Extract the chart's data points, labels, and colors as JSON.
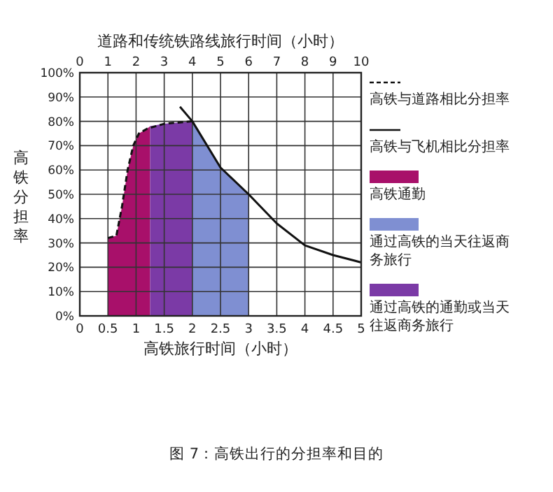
{
  "chart_data": {
    "type": "area",
    "x2label": "道路和传统铁路线旅行时间（小时）",
    "xlabel": "高铁旅行时间（小时）",
    "ylabel": "高铁分担率",
    "xlim": [
      0,
      5
    ],
    "xticks": [
      0,
      0.5,
      1,
      1.5,
      2,
      2.5,
      3,
      3.5,
      4,
      4.5,
      5
    ],
    "x2lim": [
      0,
      10
    ],
    "x2ticks": [
      0,
      1,
      2,
      3,
      4,
      5,
      6,
      7,
      8,
      9,
      10
    ],
    "ylim": [
      0,
      100
    ],
    "yticks": [
      {
        "value": 0,
        "label": "0%"
      },
      {
        "value": 10,
        "label": "10%"
      },
      {
        "value": 20,
        "label": "20%"
      },
      {
        "value": 30,
        "label": "30%"
      },
      {
        "value": 40,
        "label": "40%"
      },
      {
        "value": 50,
        "label": "50%"
      },
      {
        "value": 60,
        "label": "60%"
      },
      {
        "value": 70,
        "label": "70%"
      },
      {
        "value": 80,
        "label": "80%"
      },
      {
        "value": 90,
        "label": "90%"
      },
      {
        "value": 100,
        "label": "100%"
      }
    ],
    "grid": true,
    "legend": "right",
    "series": [
      {
        "type": "line",
        "line_style": "dashed",
        "name": "高铁与道路相比分担率",
        "color": "#111111",
        "x": [
          0.5,
          0.65,
          0.75,
          0.85,
          0.95,
          1.05,
          1.2,
          1.5,
          2.0
        ],
        "values": [
          32,
          33,
          45,
          60,
          70,
          75,
          77,
          79,
          80
        ]
      },
      {
        "type": "line",
        "line_style": "solid",
        "name": "高铁与飞机相比分担率",
        "color": "#111111",
        "x": [
          1.78,
          2.0,
          2.5,
          3.0,
          3.5,
          4.0,
          4.5,
          5.0
        ],
        "values": [
          86,
          80,
          61,
          50,
          38,
          29,
          25,
          22
        ]
      },
      {
        "type": "area",
        "name": "高铁通勤",
        "color": "#a8106a",
        "x": [
          0.5,
          0.65,
          0.75,
          0.85,
          0.95,
          1.05,
          1.2,
          1.25
        ],
        "values": [
          32,
          33,
          45,
          60,
          70,
          75,
          77,
          78
        ]
      },
      {
        "type": "area",
        "name": "通过高铁的当天往返商务旅行",
        "color": "#7f8fd2",
        "x": [
          2.0,
          2.5,
          3.0
        ],
        "values": [
          80,
          61,
          50
        ]
      },
      {
        "type": "area",
        "name": "通过高铁的通勤或当天往返商务旅行",
        "color": "#7b3aa6",
        "x": [
          1.25,
          1.5,
          2.0
        ],
        "values": [
          78,
          79,
          80
        ]
      }
    ],
    "annotations": [
      "图 7：高铁出行的分担率和目的"
    ]
  }
}
